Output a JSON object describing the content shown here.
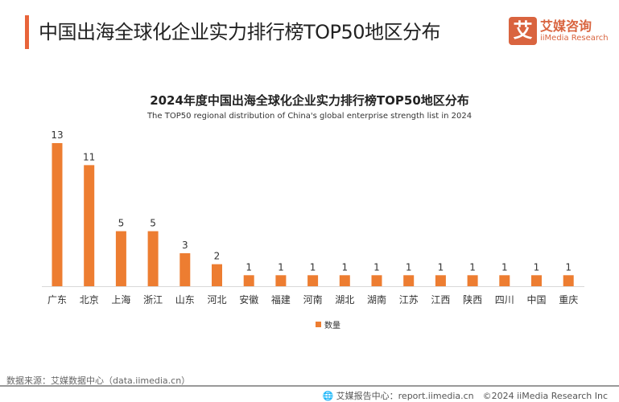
{
  "header": {
    "title": "中国出海全球化企业实力排行榜TOP50地区分布",
    "logo_mark": "艾",
    "logo_cn": "艾媒咨询",
    "logo_en": "iiMedia Research"
  },
  "chart_data": {
    "type": "bar",
    "title": "2024年度中国出海全球化企业实力排行榜TOP50地区分布",
    "subtitle": "The TOP50 regional distribution of China's global enterprise strength list in 2024",
    "categories": [
      "广东",
      "北京",
      "上海",
      "浙江",
      "山东",
      "河北",
      "安徽",
      "福建",
      "河南",
      "湖北",
      "湖南",
      "江苏",
      "江西",
      "陕西",
      "四川",
      "中国",
      "重庆"
    ],
    "series": [
      {
        "name": "数量",
        "values": [
          13,
          11,
          5,
          5,
          3,
          2,
          1,
          1,
          1,
          1,
          1,
          1,
          1,
          1,
          1,
          1,
          1
        ],
        "color": "#ed7d31"
      }
    ],
    "ylim": [
      0,
      13
    ],
    "grid": false,
    "legend": "bottom",
    "data_labels": true
  },
  "footer": {
    "source": "数据来源：艾媒数据中心（data.iimedia.cn）",
    "report": "艾媒报告中心：report.iimedia.cn　©2024  iiMedia Research  Inc"
  }
}
